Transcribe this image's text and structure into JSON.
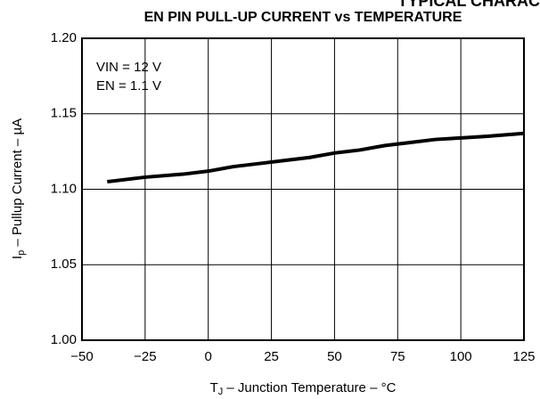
{
  "chart_data": {
    "type": "line",
    "header": "TYPICAL CHARAC",
    "title": "EN PIN PULL-UP CURRENT vs TEMPERATURE",
    "annotations": [
      "VIN = 12 V",
      "EN = 1.1 V"
    ],
    "y_label": {
      "main": "I",
      "sub": "p",
      "rest": " – Pullup Current – µA"
    },
    "x_label": {
      "main": "T",
      "sub": "J",
      "rest": " – Junction Temperature – °C"
    },
    "x": [
      -40,
      -25,
      -10,
      0,
      10,
      20,
      30,
      40,
      50,
      60,
      70,
      80,
      90,
      100,
      110,
      125
    ],
    "series": [
      {
        "color": "#000000",
        "values": [
          1.105,
          1.108,
          1.11,
          1.112,
          1.115,
          1.117,
          1.119,
          1.121,
          1.124,
          1.126,
          1.129,
          1.131,
          1.133,
          1.134,
          1.135,
          1.137
        ]
      }
    ],
    "xlim": [
      -50,
      125
    ],
    "xticks": [
      {
        "value": -50,
        "label": "−50"
      },
      {
        "value": -25,
        "label": "−25"
      },
      0,
      25,
      50,
      75,
      100,
      125
    ],
    "ylim": [
      1.0,
      1.2
    ],
    "yticks": [
      {
        "value": 1.0,
        "label": "1.00"
      },
      {
        "value": 1.05,
        "label": "1.05"
      },
      {
        "value": 1.1,
        "label": "1.10"
      },
      {
        "value": 1.15,
        "label": "1.15"
      },
      {
        "value": 1.2,
        "label": "1.20"
      }
    ],
    "grid": true
  }
}
